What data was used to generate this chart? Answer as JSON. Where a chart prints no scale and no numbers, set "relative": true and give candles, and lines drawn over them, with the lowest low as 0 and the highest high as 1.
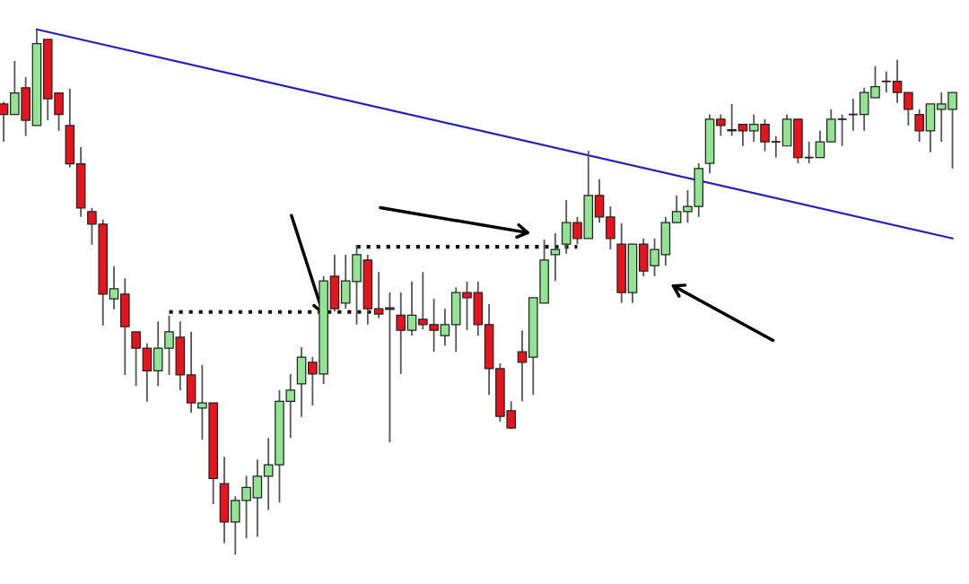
{
  "chart_data": {
    "type": "candlestick",
    "relative": true,
    "categories": [
      null,
      null,
      null,
      null,
      null,
      null,
      null,
      null,
      null,
      null,
      null,
      null,
      null,
      null,
      null,
      null,
      null,
      null,
      null,
      null,
      null,
      null,
      null,
      null,
      null,
      null,
      null,
      null,
      null,
      null,
      null,
      null,
      null,
      null,
      null,
      null,
      null,
      null,
      null,
      null,
      null,
      null,
      null,
      null,
      null,
      null,
      null,
      null,
      null,
      null,
      null,
      null,
      null,
      null,
      null,
      null,
      null,
      null,
      null,
      null,
      null,
      null,
      null,
      null,
      null,
      null,
      null,
      null,
      null,
      null,
      null,
      null,
      null,
      null,
      null,
      null,
      null,
      null,
      null,
      null,
      null,
      null,
      null,
      null,
      null,
      null,
      null
    ],
    "ohlc": [
      [
        0.858,
        0.862,
        0.786,
        0.838
      ],
      [
        0.838,
        0.94,
        0.838,
        0.879
      ],
      [
        0.889,
        0.909,
        0.797,
        0.827
      ],
      [
        0.817,
        1.0,
        0.817,
        0.973
      ],
      [
        0.981,
        0.981,
        0.827,
        0.868
      ],
      [
        0.879,
        0.879,
        0.807,
        0.838
      ],
      [
        0.817,
        0.887,
        0.737,
        0.744
      ],
      [
        0.744,
        0.776,
        0.643,
        0.66
      ],
      [
        0.653,
        0.66,
        0.59,
        0.629
      ],
      [
        0.629,
        0.638,
        0.436,
        0.496
      ],
      [
        0.487,
        0.549,
        0.467,
        0.506
      ],
      [
        0.496,
        0.526,
        0.342,
        0.434
      ],
      [
        0.424,
        0.424,
        0.321,
        0.393
      ],
      [
        0.393,
        0.402,
        0.291,
        0.35
      ],
      [
        0.35,
        0.444,
        0.321,
        0.393
      ],
      [
        0.393,
        0.455,
        0.342,
        0.424
      ],
      [
        0.414,
        0.444,
        0.313,
        0.342
      ],
      [
        0.342,
        0.424,
        0.27,
        0.289
      ],
      [
        0.279,
        0.361,
        0.219,
        0.289
      ],
      [
        0.289,
        0.289,
        0.096,
        0.145
      ],
      [
        0.135,
        0.186,
        0.022,
        0.062
      ],
      [
        0.062,
        0.111,
        0.0,
        0.103
      ],
      [
        0.103,
        0.15,
        0.031,
        0.128
      ],
      [
        0.108,
        0.181,
        0.034,
        0.149
      ],
      [
        0.149,
        0.222,
        0.085,
        0.171
      ],
      [
        0.171,
        0.313,
        0.099,
        0.292
      ],
      [
        0.292,
        0.344,
        0.222,
        0.313
      ],
      [
        0.325,
        0.395,
        0.262,
        0.376
      ],
      [
        0.366,
        0.376,
        0.284,
        0.344
      ],
      [
        0.344,
        0.53,
        0.325,
        0.521
      ],
      [
        0.53,
        0.571,
        0.463,
        0.468
      ],
      [
        0.479,
        0.571,
        0.468,
        0.521
      ],
      [
        0.52,
        0.59,
        0.438,
        0.571
      ],
      [
        0.561,
        0.571,
        0.438,
        0.468
      ],
      [
        0.468,
        0.538,
        0.45,
        0.458
      ],
      [
        0.47,
        0.499,
        0.214,
        0.467
      ],
      [
        0.456,
        0.499,
        0.344,
        0.427
      ],
      [
        0.427,
        0.52,
        0.417,
        0.456
      ],
      [
        0.448,
        0.538,
        0.429,
        0.438
      ],
      [
        0.438,
        0.487,
        0.386,
        0.427
      ],
      [
        0.417,
        0.468,
        0.398,
        0.438
      ],
      [
        0.438,
        0.509,
        0.386,
        0.499
      ],
      [
        0.499,
        0.52,
        0.427,
        0.489
      ],
      [
        0.499,
        0.52,
        0.417,
        0.438
      ],
      [
        0.438,
        0.477,
        0.304,
        0.354
      ],
      [
        0.354,
        0.364,
        0.253,
        0.263
      ],
      [
        0.274,
        0.292,
        0.239,
        0.241
      ],
      [
        0.386,
        0.427,
        0.292,
        0.366
      ],
      [
        0.376,
        0.489,
        0.304,
        0.489
      ],
      [
        0.479,
        0.6,
        0.479,
        0.561
      ],
      [
        0.571,
        0.612,
        0.521,
        0.581
      ],
      [
        0.591,
        0.675,
        0.573,
        0.632
      ],
      [
        0.632,
        0.643,
        0.591,
        0.602
      ],
      [
        0.602,
        0.769,
        0.602,
        0.684
      ],
      [
        0.684,
        0.715,
        0.632,
        0.643
      ],
      [
        0.643,
        0.663,
        0.581,
        0.602
      ],
      [
        0.591,
        0.631,
        0.479,
        0.499
      ],
      [
        0.499,
        0.591,
        0.479,
        0.591
      ],
      [
        0.591,
        0.602,
        0.53,
        0.54
      ],
      [
        0.55,
        0.602,
        0.53,
        0.581
      ],
      [
        0.571,
        0.643,
        0.55,
        0.632
      ],
      [
        0.632,
        0.684,
        0.632,
        0.653
      ],
      [
        0.653,
        0.694,
        0.632,
        0.663
      ],
      [
        0.663,
        0.745,
        0.643,
        0.735
      ],
      [
        0.745,
        0.838,
        0.726,
        0.829
      ],
      [
        0.829,
        0.838,
        0.797,
        0.817
      ],
      [
        0.809,
        0.858,
        0.797,
        0.807
      ],
      [
        0.819,
        0.819,
        0.778,
        0.807
      ],
      [
        0.807,
        0.838,
        0.786,
        0.819
      ],
      [
        0.819,
        0.829,
        0.768,
        0.786
      ],
      [
        0.786,
        0.797,
        0.756,
        0.786
      ],
      [
        0.778,
        0.838,
        0.778,
        0.829
      ],
      [
        0.829,
        0.829,
        0.745,
        0.756
      ],
      [
        0.756,
        0.786,
        0.745,
        0.756
      ],
      [
        0.756,
        0.807,
        0.756,
        0.786
      ],
      [
        0.786,
        0.848,
        0.786,
        0.829
      ],
      [
        0.829,
        0.838,
        0.778,
        0.829
      ],
      [
        0.838,
        0.868,
        0.807,
        0.838
      ],
      [
        0.838,
        0.889,
        0.807,
        0.88
      ],
      [
        0.87,
        0.93,
        0.87,
        0.891
      ],
      [
        0.901,
        0.92,
        0.88,
        0.901
      ],
      [
        0.901,
        0.942,
        0.86,
        0.88
      ],
      [
        0.88,
        0.88,
        0.817,
        0.848
      ],
      [
        0.838,
        0.848,
        0.786,
        0.807
      ],
      [
        0.807,
        0.858,
        0.766,
        0.858
      ],
      [
        0.848,
        0.88,
        0.786,
        0.858
      ],
      [
        0.848,
        0.88,
        0.735,
        0.88
      ]
    ],
    "colors": [
      "#e8141c",
      "#92e392",
      "#e8141c",
      "#92e392",
      "#e8141c",
      "#e8141c",
      "#e8141c",
      "#e8141c",
      "#e8141c",
      "#e8141c",
      "#92e392",
      "#e8141c",
      "#e8141c",
      "#e8141c",
      "#92e392",
      "#92e392",
      "#e8141c",
      "#e8141c",
      "#92e392",
      "#e8141c",
      "#e8141c",
      "#92e392",
      "#92e392",
      "#92e392",
      "#92e392",
      "#92e392",
      "#92e392",
      "#92e392",
      "#e8141c",
      "#92e392",
      "#e8141c",
      "#92e392",
      "#92e392",
      "#e8141c",
      "#e8141c",
      "#e8141c",
      "#e8141c",
      "#92e392",
      "#e8141c",
      "#e8141c",
      "#92e392",
      "#92e392",
      "#e8141c",
      "#e8141c",
      "#e8141c",
      "#e8141c",
      "#e8141c",
      "#e8141c",
      "#92e392",
      "#92e392",
      "#92e392",
      "#92e392",
      "#e8141c",
      "#92e392",
      "#e8141c",
      "#e8141c",
      "#e8141c",
      "#92e392",
      "#e8141c",
      "#92e392",
      "#92e392",
      "#92e392",
      "#92e392",
      "#92e392",
      "#92e392",
      "#e8141c",
      "#e8141c",
      "#e8141c",
      "#92e392",
      "#e8141c",
      "#222222",
      "#92e392",
      "#e8141c",
      "#222222",
      "#92e392",
      "#92e392",
      "#222222",
      "#222222",
      "#92e392",
      "#92e392",
      "#222222",
      "#e8141c",
      "#e8141c",
      "#e8141c",
      "#92e392",
      "#92e392",
      "#92e392"
    ],
    "series": [
      {
        "type": "line",
        "color": "#2222bb",
        "line_style": "solid",
        "values": [
          null,
          null,
          null,
          1.0,
          null,
          null,
          null,
          null,
          null,
          null,
          null,
          null,
          null,
          null,
          null,
          null,
          null,
          null,
          null,
          null,
          null,
          null,
          null,
          null,
          null,
          null,
          null,
          null,
          null,
          null,
          null,
          null,
          null,
          null,
          null,
          null,
          null,
          null,
          null,
          null,
          null,
          null,
          null,
          null,
          null,
          null,
          null,
          null,
          null,
          null,
          null,
          null,
          null,
          null,
          null,
          null,
          null,
          null,
          null,
          null,
          null,
          null,
          null,
          null,
          null,
          null,
          null,
          null,
          null,
          null,
          null,
          null,
          null,
          null,
          null,
          null,
          null,
          null,
          null,
          null,
          null,
          null,
          null,
          null,
          null,
          null,
          0.602
        ]
      },
      {
        "type": "line",
        "color": "#111111",
        "line_style": "dotted",
        "values": [
          null,
          null,
          null,
          null,
          null,
          null,
          null,
          null,
          null,
          null,
          null,
          null,
          null,
          null,
          null,
          0.462,
          null,
          null,
          null,
          null,
          null,
          null,
          null,
          null,
          null,
          null,
          null,
          null,
          null,
          null,
          null,
          null,
          null,
          null,
          0.462,
          null,
          null,
          null,
          null,
          null,
          null,
          null,
          null,
          null,
          null,
          null,
          null,
          null,
          null,
          null,
          null,
          null,
          null,
          null,
          null,
          null,
          null,
          null,
          null,
          null,
          null,
          null,
          null,
          null,
          null,
          null,
          null,
          null,
          null,
          null,
          null,
          null,
          null,
          null,
          null,
          null,
          null,
          null,
          null,
          null,
          null,
          null,
          null,
          null,
          null,
          null,
          null
        ]
      },
      {
        "type": "line",
        "color": "#111111",
        "line_style": "dotted",
        "values": [
          null,
          null,
          null,
          null,
          null,
          null,
          null,
          null,
          null,
          null,
          null,
          null,
          null,
          null,
          null,
          null,
          null,
          null,
          null,
          null,
          null,
          null,
          null,
          null,
          null,
          null,
          null,
          null,
          null,
          null,
          null,
          null,
          0.586,
          null,
          null,
          null,
          null,
          null,
          null,
          null,
          null,
          null,
          null,
          null,
          null,
          null,
          null,
          null,
          null,
          null,
          null,
          null,
          0.586,
          null,
          null,
          null,
          null,
          null,
          null,
          null,
          null,
          null,
          null,
          null,
          null,
          null,
          null,
          null,
          null,
          null,
          null,
          null,
          null,
          null,
          null,
          null,
          null,
          null,
          null,
          null,
          null,
          null,
          null,
          null,
          null,
          null,
          null
        ]
      }
    ]
  }
}
